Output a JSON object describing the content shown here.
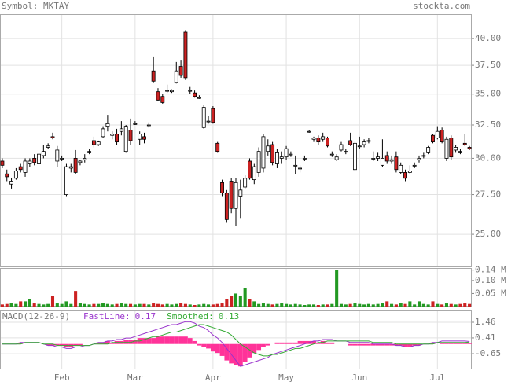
{
  "chart_data": [
    {
      "type": "candlestick",
      "title": "Symbol: MKTAY",
      "source": "stockta.com",
      "log_scale": true,
      "grid": true,
      "up_color": "#ffffff",
      "down_color": "#cc2222",
      "edge_color": "#000000",
      "xlim": [
        -0.5,
        102.5
      ],
      "xticks": [
        {
          "value": 13,
          "label": "Feb"
        },
        {
          "value": 29,
          "label": "Mar"
        },
        {
          "value": 46,
          "label": "Apr"
        },
        {
          "value": 62,
          "label": "May"
        },
        {
          "value": 78,
          "label": "Jun"
        },
        {
          "value": 95,
          "label": "Jul"
        }
      ],
      "ylim": [
        23.1,
        42.4
      ],
      "yticks": [
        {
          "value": 40,
          "label": "40.00"
        },
        {
          "value": 37.5,
          "label": "37.50"
        },
        {
          "value": 35,
          "label": "35.00"
        },
        {
          "value": 32.5,
          "label": "32.50"
        },
        {
          "value": 30,
          "label": "30.00"
        },
        {
          "value": 27.5,
          "label": "27.50"
        },
        {
          "value": 25,
          "label": "25.00"
        }
      ],
      "open": [
        29.8,
        28.9,
        28.2,
        28.6,
        29.4,
        29.0,
        29.6,
        30.0,
        29.6,
        30.2,
        30.8,
        31.6,
        29.8,
        30.0,
        27.5,
        29.3,
        30.0,
        29.7,
        29.9,
        30.4,
        31.3,
        31.0,
        31.6,
        32.4,
        31.7,
        31.8,
        32.0,
        30.5,
        32.1,
        32.6,
        31.4,
        31.6,
        32.5,
        37.0,
        35.2,
        34.8,
        35.3,
        35.2,
        36.0,
        37.4,
        40.6,
        35.3,
        35.1,
        34.7,
        32.3,
        32.8,
        33.8,
        31.1,
        28.3,
        27.6,
        28.4,
        26.6,
        27.4,
        28.0,
        29.8,
        28.5,
        29.0,
        29.3,
        30.5,
        31.0,
        29.6,
        30.0,
        30.1,
        30.3,
        29.5,
        29.3,
        30.0,
        32.0,
        31.4,
        31.5,
        31.4,
        31.5,
        30.3,
        29.9,
        30.6,
        30.5,
        31.3,
        29.2,
        30.9,
        31.0,
        31.3,
        30.0,
        30.0,
        29.5,
        30.2,
        29.8,
        30.1,
        29.0,
        29.0,
        29.0,
        29.5,
        29.9,
        30.2,
        30.4,
        31.7,
        31.5,
        32.1,
        30.0,
        31.5,
        30.6,
        30.5,
        31.1,
        30.8
      ],
      "high": [
        30.0,
        29.2,
        28.6,
        29.3,
        29.6,
        30.0,
        30.0,
        30.3,
        30.5,
        31.0,
        31.1,
        31.9,
        30.9,
        30.2,
        29.6,
        29.6,
        30.6,
        29.9,
        30.3,
        30.7,
        31.6,
        31.3,
        32.4,
        33.3,
        32.0,
        32.2,
        32.8,
        32.5,
        33.0,
        32.8,
        32.0,
        31.9,
        32.7,
        38.3,
        35.5,
        35.0,
        35.8,
        35.4,
        37.8,
        38.0,
        40.8,
        35.6,
        35.3,
        34.9,
        34.1,
        33.2,
        34.0,
        31.2,
        28.5,
        27.8,
        28.6,
        28.6,
        28.5,
        28.8,
        30.0,
        29.6,
        30.8,
        31.8,
        31.4,
        31.2,
        30.7,
        30.5,
        30.9,
        30.5,
        30.2,
        29.5,
        30.2,
        32.1,
        31.6,
        31.7,
        31.9,
        31.6,
        30.5,
        30.3,
        31.2,
        30.7,
        31.9,
        31.3,
        31.6,
        31.4,
        31.5,
        30.5,
        30.4,
        31.4,
        30.5,
        30.2,
        30.5,
        29.7,
        29.2,
        29.5,
        29.7,
        30.2,
        30.4,
        30.9,
        31.8,
        32.4,
        32.3,
        31.6,
        31.7,
        31.0,
        30.7,
        31.8,
        30.9
      ],
      "low": [
        29.3,
        28.4,
        27.9,
        28.5,
        29.0,
        28.7,
        29.4,
        29.5,
        29.3,
        30.0,
        30.7,
        31.4,
        29.4,
        29.8,
        27.4,
        29.0,
        28.9,
        29.5,
        29.7,
        30.3,
        30.8,
        30.9,
        31.5,
        32.0,
        31.4,
        31.0,
        31.7,
        30.4,
        31.0,
        32.5,
        31.0,
        31.1,
        32.3,
        36.0,
        34.4,
        34.2,
        35.1,
        35.1,
        35.9,
        36.4,
        36.2,
        35.0,
        34.7,
        34.6,
        32.2,
        32.6,
        32.6,
        30.4,
        27.4,
        25.7,
        26.3,
        25.5,
        26.0,
        27.9,
        28.5,
        28.2,
        28.7,
        29.0,
        30.2,
        29.5,
        29.3,
        29.6,
        29.9,
        30.1,
        28.9,
        29.0,
        29.8,
        31.9,
        31.2,
        31.0,
        31.2,
        30.8,
        30.1,
        29.8,
        30.5,
        30.3,
        30.9,
        29.1,
        30.7,
        30.8,
        31.1,
        29.8,
        29.8,
        29.4,
        29.6,
        29.6,
        29.0,
        28.9,
        28.4,
        28.9,
        29.3,
        29.7,
        30.0,
        30.3,
        31.1,
        31.4,
        31.1,
        29.8,
        29.9,
        30.4,
        30.3,
        30.9,
        30.6
      ],
      "close": [
        29.5,
        28.7,
        28.4,
        29.1,
        29.2,
        29.8,
        29.8,
        29.7,
        30.3,
        30.5,
        30.9,
        31.5,
        30.6,
        30.0,
        29.4,
        29.4,
        29.0,
        29.8,
        30.0,
        30.5,
        31.0,
        31.2,
        32.2,
        32.6,
        31.8,
        31.2,
        32.2,
        32.4,
        31.3,
        32.6,
        31.8,
        31.4,
        32.5,
        36.1,
        34.5,
        34.3,
        35.3,
        35.3,
        37.0,
        36.6,
        36.4,
        35.3,
        34.8,
        34.7,
        33.9,
        32.8,
        32.7,
        30.5,
        27.6,
        25.9,
        26.6,
        28.3,
        27.8,
        28.6,
        28.6,
        29.4,
        30.5,
        31.6,
        30.9,
        29.7,
        30.4,
        30.1,
        30.7,
        30.3,
        29.5,
        29.3,
        30.0,
        32.0,
        31.5,
        31.2,
        31.6,
        30.9,
        30.3,
        30.1,
        31.0,
        30.5,
        31.0,
        31.1,
        30.9,
        31.2,
        31.3,
        30.0,
        30.1,
        30.0,
        29.8,
        29.9,
        29.2,
        29.5,
        28.6,
        29.1,
        29.5,
        30.0,
        30.2,
        30.8,
        31.2,
        32.0,
        31.2,
        31.4,
        30.1,
        30.8,
        30.4,
        31.0,
        30.7
      ]
    },
    {
      "type": "bar",
      "up_color": "#229922",
      "down_color": "#cc2222",
      "ylim": [
        0,
        0.148
      ],
      "yticks": [
        {
          "value": 0.14,
          "label": "0.14 M"
        },
        {
          "value": 0.1,
          "label": "0.10 M"
        },
        {
          "value": 0.05,
          "label": "0.05 M"
        }
      ],
      "values": [
        0.008,
        0.01,
        0.012,
        0.01,
        0.02,
        0.02,
        0.03,
        0.012,
        0.01,
        0.008,
        0.01,
        0.04,
        0.012,
        0.01,
        0.02,
        0.01,
        0.06,
        0.012,
        0.01,
        0.008,
        0.01,
        0.01,
        0.012,
        0.01,
        0.008,
        0.01,
        0.012,
        0.01,
        0.01,
        0.008,
        0.01,
        0.01,
        0.008,
        0.012,
        0.01,
        0.008,
        0.01,
        0.008,
        0.01,
        0.012,
        0.01,
        0.008,
        0.006,
        0.008,
        0.01,
        0.008,
        0.008,
        0.01,
        0.012,
        0.03,
        0.04,
        0.05,
        0.04,
        0.07,
        0.03,
        0.02,
        0.01,
        0.012,
        0.01,
        0.008,
        0.01,
        0.012,
        0.01,
        0.008,
        0.01,
        0.008,
        0.006,
        0.008,
        0.008,
        0.006,
        0.008,
        0.008,
        0.01,
        0.14,
        0.01,
        0.008,
        0.01,
        0.012,
        0.01,
        0.008,
        0.01,
        0.008,
        0.01,
        0.012,
        0.02,
        0.01,
        0.008,
        0.012,
        0.01,
        0.02,
        0.008,
        0.02,
        0.01,
        0.008,
        0.02,
        0.01,
        0.008,
        0.012,
        0.01,
        0.008,
        0.01,
        0.012,
        0.01
      ]
    },
    {
      "type": "macd",
      "title": "MACD(12-26-9)",
      "grid": true,
      "hist_color": "#ff3399",
      "ylim": [
        -1.7,
        2.25
      ],
      "yticks": [
        1.46,
        0.41,
        -0.65
      ],
      "histogram": [
        0,
        0,
        0,
        0,
        0.1,
        0,
        0,
        0,
        0,
        0,
        -0.1,
        -0.1,
        -0.1,
        -0.1,
        -0.2,
        -0.2,
        -0.1,
        -0.1,
        0,
        0,
        0,
        0.1,
        0.1,
        0.2,
        0.1,
        0.2,
        0.2,
        0.3,
        0.3,
        0.3,
        0.4,
        0.4,
        0.4,
        0.4,
        0.5,
        0.5,
        0.5,
        0.5,
        0.5,
        0.5,
        0.5,
        0.4,
        0.2,
        -0.1,
        -0.2,
        -0.3,
        -0.5,
        -0.6,
        -0.8,
        -1.1,
        -1.3,
        -1.4,
        -1.5,
        -1.2,
        -0.9,
        -0.6,
        -0.4,
        -0.2,
        -0.1,
        0,
        0.1,
        0.1,
        0.1,
        0.1,
        0.1,
        0.2,
        0.2,
        0.2,
        0.2,
        0.1,
        0.2,
        0.1,
        0.1,
        0,
        0,
        0,
        -0.1,
        -0.1,
        -0.1,
        -0.1,
        -0.1,
        -0.1,
        -0.1,
        -0.1,
        -0.1,
        -0.1,
        -0.1,
        -0.1,
        -0.2,
        -0.2,
        -0.1,
        -0.1,
        0,
        0,
        0.1,
        0,
        0.1,
        0.1,
        0.1,
        0.1,
        0.1,
        0.1,
        0.04
      ],
      "series": [
        {
          "name": "FastLine:",
          "color": "#9933cc",
          "values": [
            0.0,
            0.0,
            0.0,
            0.0,
            0.1,
            0.1,
            0.1,
            0.1,
            0.1,
            0.0,
            -0.1,
            -0.1,
            -0.2,
            -0.2,
            -0.3,
            -0.3,
            -0.2,
            -0.2,
            -0.1,
            -0.1,
            0.0,
            0.1,
            0.1,
            0.2,
            0.2,
            0.3,
            0.3,
            0.4,
            0.4,
            0.5,
            0.6,
            0.7,
            0.8,
            0.9,
            1.0,
            1.1,
            1.2,
            1.3,
            1.3,
            1.4,
            1.5,
            1.5,
            1.4,
            1.2,
            1.1,
            0.9,
            0.6,
            0.4,
            0.1,
            -0.3,
            -0.7,
            -1.1,
            -1.5,
            -1.4,
            -1.3,
            -1.2,
            -1.1,
            -1.0,
            -0.9,
            -0.7,
            -0.6,
            -0.5,
            -0.4,
            -0.3,
            -0.2,
            -0.1,
            0.0,
            0.1,
            0.2,
            0.2,
            0.3,
            0.3,
            0.3,
            0.2,
            0.2,
            0.2,
            0.1,
            0.1,
            0.1,
            0.1,
            0.1,
            0.0,
            0.0,
            0.0,
            0.0,
            0.0,
            -0.1,
            -0.1,
            -0.2,
            -0.2,
            -0.1,
            -0.1,
            0.0,
            0.0,
            0.1,
            0.1,
            0.2,
            0.2,
            0.2,
            0.2,
            0.2,
            0.2,
            0.17
          ]
        },
        {
          "name": "Smoothed:",
          "color": "#33aa33",
          "values": [
            0.0,
            0.0,
            0.0,
            0.0,
            0.0,
            0.1,
            0.1,
            0.1,
            0.1,
            0.0,
            0.0,
            0.0,
            -0.1,
            -0.1,
            -0.1,
            -0.1,
            -0.1,
            -0.1,
            -0.1,
            -0.1,
            0.0,
            0.0,
            0.0,
            0.0,
            0.1,
            0.1,
            0.1,
            0.1,
            0.1,
            0.2,
            0.2,
            0.3,
            0.4,
            0.5,
            0.5,
            0.6,
            0.7,
            0.8,
            0.8,
            0.9,
            1.0,
            1.1,
            1.2,
            1.3,
            1.3,
            1.2,
            1.1,
            1.0,
            0.9,
            0.8,
            0.6,
            0.3,
            0.0,
            -0.2,
            -0.4,
            -0.6,
            -0.7,
            -0.8,
            -0.8,
            -0.7,
            -0.7,
            -0.6,
            -0.5,
            -0.4,
            -0.3,
            -0.3,
            -0.2,
            -0.1,
            0.0,
            0.1,
            0.1,
            0.2,
            0.2,
            0.2,
            0.2,
            0.2,
            0.2,
            0.2,
            0.2,
            0.2,
            0.2,
            0.1,
            0.1,
            0.1,
            0.1,
            0.1,
            0.0,
            0.0,
            0.0,
            0.0,
            0.0,
            0.0,
            0.0,
            0.0,
            0.0,
            0.1,
            0.1,
            0.1,
            0.1,
            0.1,
            0.1,
            0.1,
            0.13
          ]
        }
      ]
    }
  ]
}
